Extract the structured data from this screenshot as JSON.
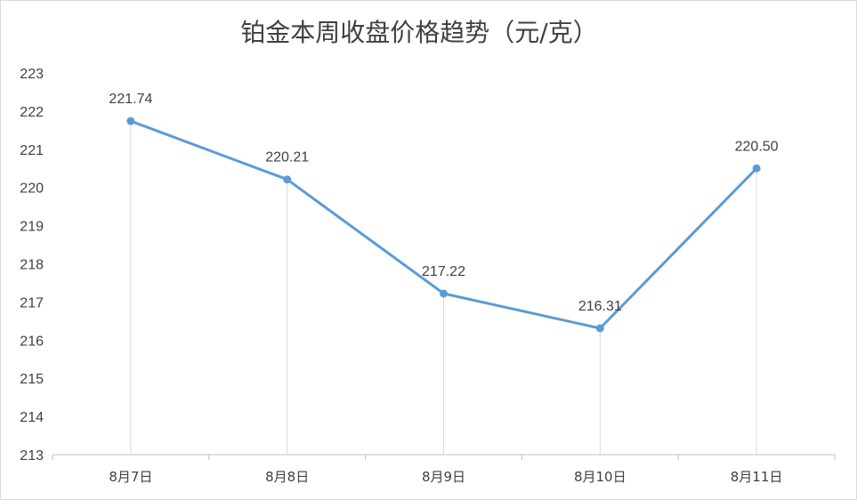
{
  "chart_data": {
    "type": "line",
    "title": "铂金本周收盘价格趋势（元/克）",
    "xlabel": "",
    "ylabel": "",
    "categories": [
      "8月7日",
      "8月8日",
      "8月9日",
      "8月10日",
      "8月11日"
    ],
    "series": [
      {
        "values": [
          221.74,
          220.21,
          217.22,
          216.31,
          220.5
        ],
        "data_labels": [
          "221.74",
          "220.21",
          "217.22",
          "216.31",
          "220.50"
        ]
      }
    ],
    "ylim": [
      213,
      223
    ],
    "yticks": [
      "213",
      "214",
      "215",
      "216",
      "217",
      "218",
      "219",
      "220",
      "221",
      "222",
      "223"
    ],
    "grid": false,
    "drop_lines": true,
    "legend": "none",
    "colors": {
      "series": "#5b9bd5",
      "drop_line": "#d9d9d9",
      "axis": "#bfbfbf",
      "text": "#404040"
    }
  }
}
